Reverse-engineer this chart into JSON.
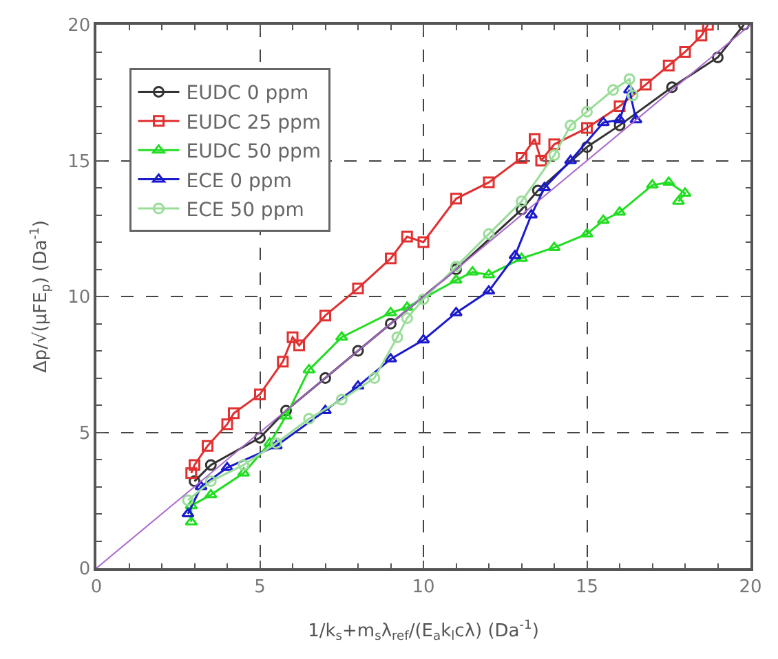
{
  "chart_data": {
    "type": "line",
    "xlabel": "1/k$_{s}$+m$_{s}$λ$_{ref}$/(E$_{a}$k$_{l}$cλ) (Da$^{-1}$)",
    "ylabel": "Δp/√(μFE$_{p}$) (Da$^{-1}$)",
    "xlim": [
      0,
      20
    ],
    "ylim": [
      0,
      20
    ],
    "xticks": [
      0,
      5,
      10,
      15,
      20
    ],
    "yticks": [
      0,
      5,
      10,
      15,
      20
    ],
    "grid": true,
    "line_style": "solid",
    "legend": "top left",
    "series": [
      {
        "name": "EUDC 0 ppm",
        "color": "#333333",
        "marker": "circle",
        "x": [
          3,
          3.5,
          5,
          5.8,
          7,
          8,
          9,
          11,
          13,
          13.5,
          15,
          16,
          17.6,
          19,
          19.8
        ],
        "values": [
          3.2,
          3.8,
          4.8,
          5.8,
          7,
          8,
          9,
          11,
          13.2,
          13.9,
          15.5,
          16.3,
          17.7,
          18.8,
          20
        ]
      },
      {
        "name": "EUDC 25 ppm",
        "color": "#e03030",
        "marker": "square",
        "x": [
          2.9,
          3,
          3.4,
          4,
          4.2,
          5,
          5.7,
          6,
          6.2,
          7,
          8,
          9,
          9.5,
          10,
          11,
          12,
          13,
          13.4,
          13.6,
          14,
          15,
          16,
          16.8,
          17.5,
          18,
          18.5,
          18.7
        ],
        "values": [
          3.5,
          3.8,
          4.5,
          5.3,
          5.7,
          6.4,
          7.6,
          8.5,
          8.2,
          9.3,
          10.3,
          11.4,
          12.2,
          12,
          13.6,
          14.2,
          15.1,
          15.8,
          15,
          15.6,
          16.2,
          17,
          17.8,
          18.5,
          19,
          19.6,
          20
        ]
      },
      {
        "name": "EUDC 50 ppm",
        "color": "#22dd22",
        "marker": "triangle",
        "x": [
          2.9,
          2.9,
          3.5,
          4.5,
          5.3,
          5.8,
          6.5,
          7.5,
          9,
          9.5,
          11,
          11.5,
          12,
          13,
          14,
          15,
          15.5,
          16,
          17,
          17.5,
          18,
          17.8
        ],
        "values": [
          1.7,
          2.3,
          2.7,
          3.5,
          4.6,
          5.6,
          7.3,
          8.5,
          9.4,
          9.6,
          10.6,
          10.9,
          10.8,
          11.4,
          11.8,
          12.3,
          12.8,
          13.1,
          14.1,
          14.2,
          13.8,
          13.5
        ]
      },
      {
        "name": "ECE 0 ppm",
        "color": "#1a1acc",
        "marker": "triangle",
        "x": [
          2.8,
          3.2,
          4,
          5.5,
          7,
          8,
          9,
          10,
          11,
          12,
          12.8,
          13.3,
          13.7,
          14.5,
          15.5,
          16,
          16.3,
          16.5
        ],
        "values": [
          2,
          3,
          3.7,
          4.5,
          5.8,
          6.7,
          7.7,
          8.4,
          9.4,
          10.2,
          11.5,
          13,
          14,
          15,
          16.4,
          16.5,
          17.6,
          16.5
        ]
      },
      {
        "name": "ECE 50 ppm",
        "color": "#99dd99",
        "marker": "circle",
        "x": [
          2.8,
          3.5,
          4.5,
          5.5,
          6.5,
          7.5,
          8.5,
          9.2,
          9.5,
          10,
          11,
          12,
          13,
          14,
          14.5,
          15,
          15.8,
          16.3,
          16.4
        ],
        "values": [
          2.5,
          3.2,
          3.8,
          4.6,
          5.5,
          6.2,
          7,
          8.5,
          9.2,
          9.9,
          11.1,
          12.3,
          13.5,
          15.2,
          16.3,
          16.8,
          17.6,
          18,
          17.4
        ]
      },
      {
        "color": "#aa66cc",
        "marker": "none",
        "x": [
          0,
          20
        ],
        "values": [
          0,
          20
        ]
      }
    ]
  }
}
